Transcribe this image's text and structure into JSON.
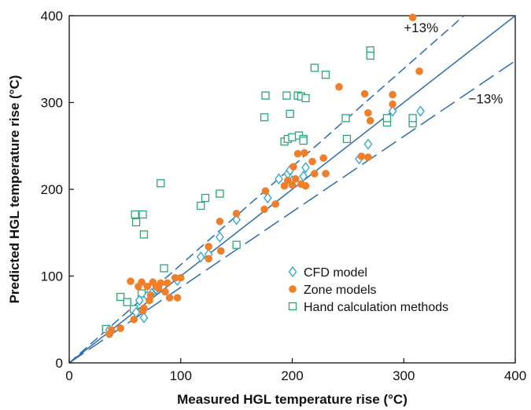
{
  "chart_data": {
    "type": "scatter",
    "title": "",
    "xlabel": "Measured HGL temperature rise (°C)",
    "ylabel": "Predicted HGL temperature rise (°C)",
    "xlim": [
      0,
      400
    ],
    "ylim": [
      0,
      400
    ],
    "x_ticks": [
      0,
      100,
      200,
      300,
      400
    ],
    "y_ticks": [
      0,
      100,
      200,
      300,
      400
    ],
    "x_tick_labels": [
      "0",
      "100",
      "200",
      "300",
      "400"
    ],
    "y_tick_labels": [
      "0",
      "100",
      "200",
      "300",
      "400"
    ],
    "grid": false,
    "legend_position": "lower-right",
    "reference_lines": [
      {
        "slope": 1.0,
        "style": "solid",
        "color": "#2b6cb0"
      },
      {
        "slope": 1.13,
        "style": "dashed",
        "color": "#2b6cb0",
        "label": "+13%"
      },
      {
        "slope": 0.87,
        "style": "dashed",
        "color": "#2b6cb0",
        "label": "−13%"
      }
    ],
    "series": [
      {
        "name": "CFD model",
        "marker": "diamond",
        "color": "#2aa4d6",
        "points": [
          [
            36,
            38
          ],
          [
            60,
            58
          ],
          [
            63,
            72
          ],
          [
            67,
            52
          ],
          [
            70,
            77
          ],
          [
            74,
            80
          ],
          [
            78,
            85
          ],
          [
            97,
            95
          ],
          [
            118,
            122
          ],
          [
            125,
            125
          ],
          [
            135,
            145
          ],
          [
            150,
            165
          ],
          [
            178,
            190
          ],
          [
            188,
            212
          ],
          [
            196,
            218
          ],
          [
            198,
            222
          ],
          [
            200,
            210
          ],
          [
            210,
            215
          ],
          [
            212,
            225
          ],
          [
            260,
            235
          ],
          [
            268,
            252
          ],
          [
            290,
            290
          ],
          [
            315,
            290
          ]
        ]
      },
      {
        "name": "Zone models",
        "marker": "circle",
        "color": "#f07f2a",
        "points": [
          [
            36,
            33
          ],
          [
            38,
            38
          ],
          [
            46,
            40
          ],
          [
            55,
            94
          ],
          [
            58,
            50
          ],
          [
            62,
            88
          ],
          [
            65,
            93
          ],
          [
            66,
            60
          ],
          [
            67,
            63
          ],
          [
            70,
            88
          ],
          [
            72,
            72
          ],
          [
            73,
            78
          ],
          [
            75,
            93
          ],
          [
            78,
            88
          ],
          [
            80,
            86
          ],
          [
            82,
            92
          ],
          [
            86,
            82
          ],
          [
            88,
            92
          ],
          [
            90,
            75
          ],
          [
            95,
            98
          ],
          [
            97,
            75
          ],
          [
            100,
            98
          ],
          [
            125,
            120
          ],
          [
            125,
            134
          ],
          [
            135,
            163
          ],
          [
            136,
            129
          ],
          [
            150,
            172
          ],
          [
            175,
            177
          ],
          [
            176,
            198
          ],
          [
            185,
            183
          ],
          [
            193,
            204
          ],
          [
            196,
            210
          ],
          [
            200,
            205
          ],
          [
            201,
            226
          ],
          [
            203,
            212
          ],
          [
            205,
            241
          ],
          [
            208,
            206
          ],
          [
            211,
            242
          ],
          [
            212,
            204
          ],
          [
            218,
            232
          ],
          [
            220,
            218
          ],
          [
            228,
            236
          ],
          [
            230,
            218
          ],
          [
            242,
            318
          ],
          [
            262,
            238
          ],
          [
            265,
            310
          ],
          [
            268,
            237
          ],
          [
            268,
            288
          ],
          [
            270,
            279
          ],
          [
            290,
            309
          ],
          [
            290,
            298
          ],
          [
            308,
            398
          ],
          [
            314,
            336
          ]
        ]
      },
      {
        "name": "Hand calculation methods",
        "marker": "square",
        "color": "#2aa872",
        "points": [
          [
            33,
            39
          ],
          [
            46,
            76
          ],
          [
            52,
            70
          ],
          [
            58,
            62
          ],
          [
            59,
            171
          ],
          [
            60,
            162
          ],
          [
            65,
            80
          ],
          [
            66,
            171
          ],
          [
            67,
            148
          ],
          [
            82,
            207
          ],
          [
            85,
            109
          ],
          [
            118,
            181
          ],
          [
            122,
            190
          ],
          [
            135,
            195
          ],
          [
            150,
            136
          ],
          [
            175,
            283
          ],
          [
            176,
            308
          ],
          [
            193,
            255
          ],
          [
            195,
            308
          ],
          [
            196,
            258
          ],
          [
            198,
            287
          ],
          [
            200,
            260
          ],
          [
            205,
            308
          ],
          [
            206,
            262
          ],
          [
            208,
            307
          ],
          [
            210,
            258
          ],
          [
            210,
            256
          ],
          [
            212,
            305
          ],
          [
            220,
            340
          ],
          [
            230,
            332
          ],
          [
            248,
            282
          ],
          [
            249,
            258
          ],
          [
            270,
            360
          ],
          [
            270,
            354
          ],
          [
            285,
            277
          ],
          [
            285,
            282
          ],
          [
            308,
            276
          ],
          [
            308,
            282
          ]
        ]
      }
    ],
    "annotations": [
      {
        "text": "+13%",
        "x": 300,
        "y": 381
      },
      {
        "text": "−13%",
        "x": 358,
        "y": 299
      }
    ]
  }
}
